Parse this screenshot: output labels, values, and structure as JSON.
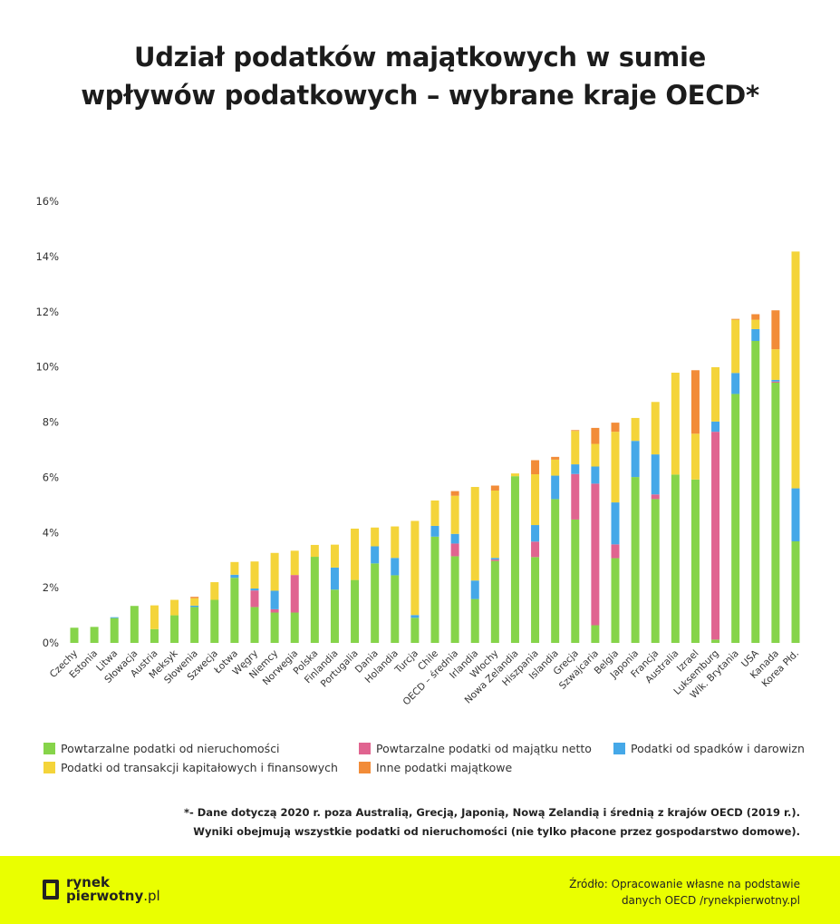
{
  "title_line1": "Udział podatków majątkowych w sumie",
  "title_line2": "wpływów podatkowych – wybrane kraje OECD*",
  "colors": {
    "green": "#86d44a",
    "pink": "#e06490",
    "blue": "#45a8e8",
    "yellow": "#f4d43a",
    "orange": "#f28c38",
    "footer": "#eaff00"
  },
  "chart_data": {
    "type": "bar",
    "stacked": true,
    "ylim": [
      0,
      16
    ],
    "yticks": [
      "0%",
      "2%",
      "4%",
      "6%",
      "8%",
      "10%",
      "12%",
      "14%",
      "16%"
    ],
    "grid": false,
    "legend_placement": "bottom",
    "categories": [
      "Czechy",
      "Estonia",
      "Litwa",
      "Słowacja",
      "Austria",
      "Meksyk",
      "Słowenia",
      "Szwecja",
      "Łotwa",
      "Węgry",
      "Niemcy",
      "Norwegia",
      "Polska",
      "Finlandia",
      "Portugalia",
      "Dania",
      "Holandia",
      "Turcja",
      "Chile",
      "OECD – średnia",
      "Irlandia",
      "Włochy",
      "Nowa Zelandia",
      "Hiszpania",
      "Islandia",
      "Grecja",
      "Szwajcaria",
      "Belgia",
      "Japonia",
      "Francja",
      "Australia",
      "Izrael",
      "Luksemburg",
      "Wlk. Brytania",
      "USA",
      "Kanada",
      "Korea Płd."
    ],
    "series": [
      {
        "name": "Powtarzalne podatki od nieruchomości",
        "color": "#86d44a",
        "values": [
          0.55,
          0.58,
          0.9,
          1.34,
          0.5,
          1.0,
          1.3,
          1.56,
          2.36,
          1.3,
          1.1,
          1.1,
          3.12,
          1.93,
          2.28,
          2.88,
          2.45,
          0.91,
          3.85,
          3.14,
          1.59,
          2.97,
          6.04,
          3.11,
          5.21,
          4.47,
          0.64,
          3.07,
          6.01,
          5.21,
          6.1,
          5.92,
          0.12,
          9.02,
          10.94,
          9.43,
          3.68
        ]
      },
      {
        "name": "Powtarzalne podatki od majątku netto",
        "color": "#e06490",
        "values": [
          0,
          0,
          0,
          0,
          0,
          0,
          0,
          0,
          0,
          0.6,
          0.12,
          1.36,
          0,
          0,
          0,
          0,
          0,
          0,
          0,
          0.46,
          0,
          0.05,
          0,
          0.56,
          0,
          1.65,
          5.13,
          0.5,
          0,
          0.17,
          0,
          0,
          7.53,
          0,
          0,
          0.04,
          0
        ]
      },
      {
        "name": "Podatki od spadków i darowizn",
        "color": "#45a8e8",
        "values": [
          0,
          0,
          0.03,
          0,
          0,
          0,
          0.05,
          0,
          0.11,
          0.07,
          0.67,
          0,
          0,
          0.8,
          0,
          0.62,
          0.63,
          0.1,
          0.39,
          0.35,
          0.67,
          0.06,
          0,
          0.6,
          0.85,
          0.35,
          0.62,
          1.52,
          1.31,
          1.45,
          0,
          0,
          0.37,
          0.76,
          0.43,
          0.06,
          1.92
        ]
      },
      {
        "name": "Podatki od transakcji kapitałowych i finansowych",
        "color": "#f4d43a",
        "values": [
          0,
          0,
          0,
          0,
          0.86,
          0.56,
          0.27,
          0.64,
          0.46,
          0.98,
          1.37,
          0.88,
          0.43,
          0.83,
          1.86,
          0.68,
          1.14,
          3.41,
          0.92,
          1.38,
          3.39,
          2.44,
          0.1,
          1.84,
          0.58,
          1.21,
          0.82,
          2.56,
          0.83,
          1.9,
          3.69,
          1.66,
          1.97,
          1.93,
          0.34,
          1.11,
          8.58
        ]
      },
      {
        "name": "Inne podatki majątkowe",
        "color": "#f28c38",
        "values": [
          0,
          0,
          0,
          0,
          0,
          0,
          0.05,
          0,
          0,
          0,
          0,
          0,
          0,
          0,
          0,
          0,
          0,
          0,
          0,
          0.17,
          0,
          0.18,
          0,
          0.51,
          0.1,
          0.03,
          0.58,
          0.33,
          0,
          0,
          0,
          2.3,
          0,
          0.03,
          0.2,
          1.41,
          0
        ]
      }
    ]
  },
  "note_line1": "*- Dane dotyczą 2020 r. poza Australią, Grecją, Japonią, Nową Zelandią i średnią z krajów OECD (2019 r.).",
  "note_line2": "Wyniki obejmują wszystkie podatki od nieruchomości (nie tylko płacone przez gospodarstwo domowe).",
  "footer": {
    "logo_line1": "rynek",
    "logo_line2": "pierwotny",
    "logo_suffix": ".pl",
    "source_line1": "Źródło: Opracowanie własne na podstawie",
    "source_line2": "danych OECD /rynekpierwotny.pl"
  }
}
